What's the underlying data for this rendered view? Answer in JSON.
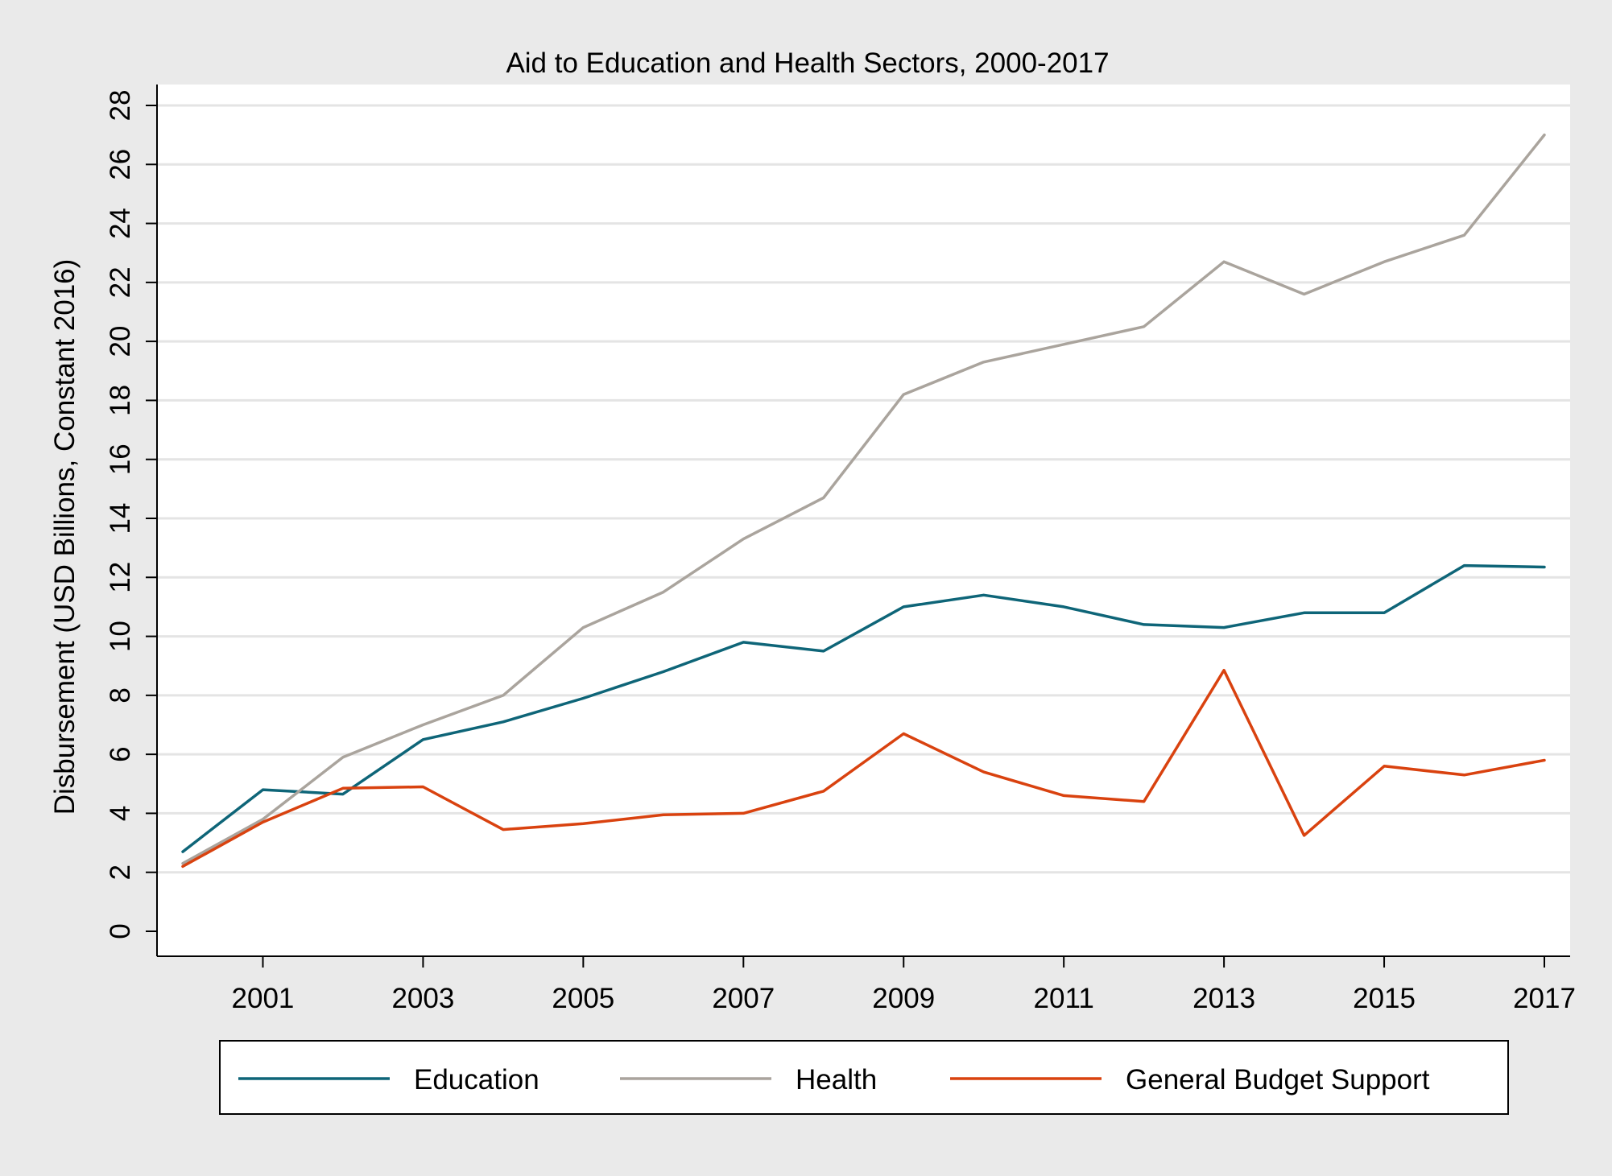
{
  "chart_data": {
    "type": "line",
    "title": "Aid to Education and Health Sectors, 2000-2017",
    "xlabel": "",
    "ylabel": "Disbursement (USD Billions, Constant 2016)",
    "x": [
      2000,
      2001,
      2002,
      2003,
      2004,
      2005,
      2006,
      2007,
      2008,
      2009,
      2010,
      2011,
      2012,
      2013,
      2014,
      2015,
      2016,
      2017
    ],
    "xticks": [
      2001,
      2003,
      2005,
      2007,
      2009,
      2011,
      2013,
      2015,
      2017
    ],
    "yticks": [
      0,
      2,
      4,
      6,
      8,
      10,
      12,
      14,
      16,
      18,
      20,
      22,
      24,
      26,
      28
    ],
    "xlim": [
      2000,
      2017
    ],
    "ylim": [
      0,
      28
    ],
    "grid": true,
    "legend_position": "bottom",
    "series": [
      {
        "name": "Education",
        "color": "#0e6578",
        "values": [
          2.7,
          4.8,
          4.65,
          6.5,
          7.1,
          7.9,
          8.8,
          9.8,
          9.5,
          11.0,
          11.4,
          11.0,
          10.4,
          10.3,
          10.8,
          10.8,
          12.4,
          12.35
        ]
      },
      {
        "name": "Health",
        "color": "#aaa49d",
        "values": [
          2.3,
          3.8,
          5.9,
          7.0,
          8.0,
          10.3,
          11.5,
          13.3,
          14.7,
          18.2,
          19.3,
          19.9,
          20.5,
          22.7,
          21.6,
          22.7,
          23.6,
          27.0
        ]
      },
      {
        "name": "General Budget Support",
        "color": "#d9420f",
        "values": [
          2.2,
          3.7,
          4.85,
          4.9,
          3.45,
          3.65,
          3.95,
          4.0,
          4.75,
          6.7,
          5.4,
          4.6,
          4.4,
          8.85,
          3.25,
          5.6,
          5.3,
          5.8
        ]
      }
    ]
  }
}
